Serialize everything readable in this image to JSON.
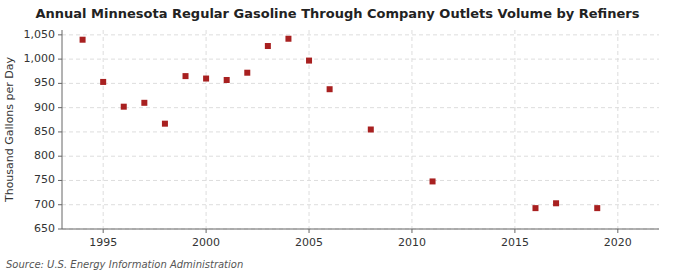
{
  "chart_data": {
    "type": "scatter",
    "title": "Annual Minnesota Regular Gasoline Through Company Outlets Volume by Refiners",
    "ylabel": "Thousand Gallons per Day",
    "source": "Source: U.S. Energy Information Administration",
    "x": [
      1994,
      1995,
      1996,
      1997,
      1998,
      1999,
      2000,
      2001,
      2002,
      2003,
      2004,
      2005,
      2006,
      2008,
      2011,
      2016,
      2017,
      2019
    ],
    "values": [
      1040,
      953,
      902,
      910,
      867,
      965,
      960,
      957,
      972,
      1027,
      1042,
      997,
      938,
      855,
      748,
      693,
      703,
      693
    ],
    "color": "#a82020",
    "marker": "square",
    "xlim": [
      1993.0,
      2022.0
    ],
    "ylim": [
      650,
      1060
    ],
    "xticks": [
      1995,
      2000,
      2005,
      2010,
      2015,
      2020
    ],
    "yticks": [
      650,
      700,
      750,
      800,
      850,
      900,
      950,
      {
        "value": 1000,
        "label": "1,000"
      },
      {
        "value": 1050,
        "label": "1,050"
      }
    ],
    "grid": true
  }
}
